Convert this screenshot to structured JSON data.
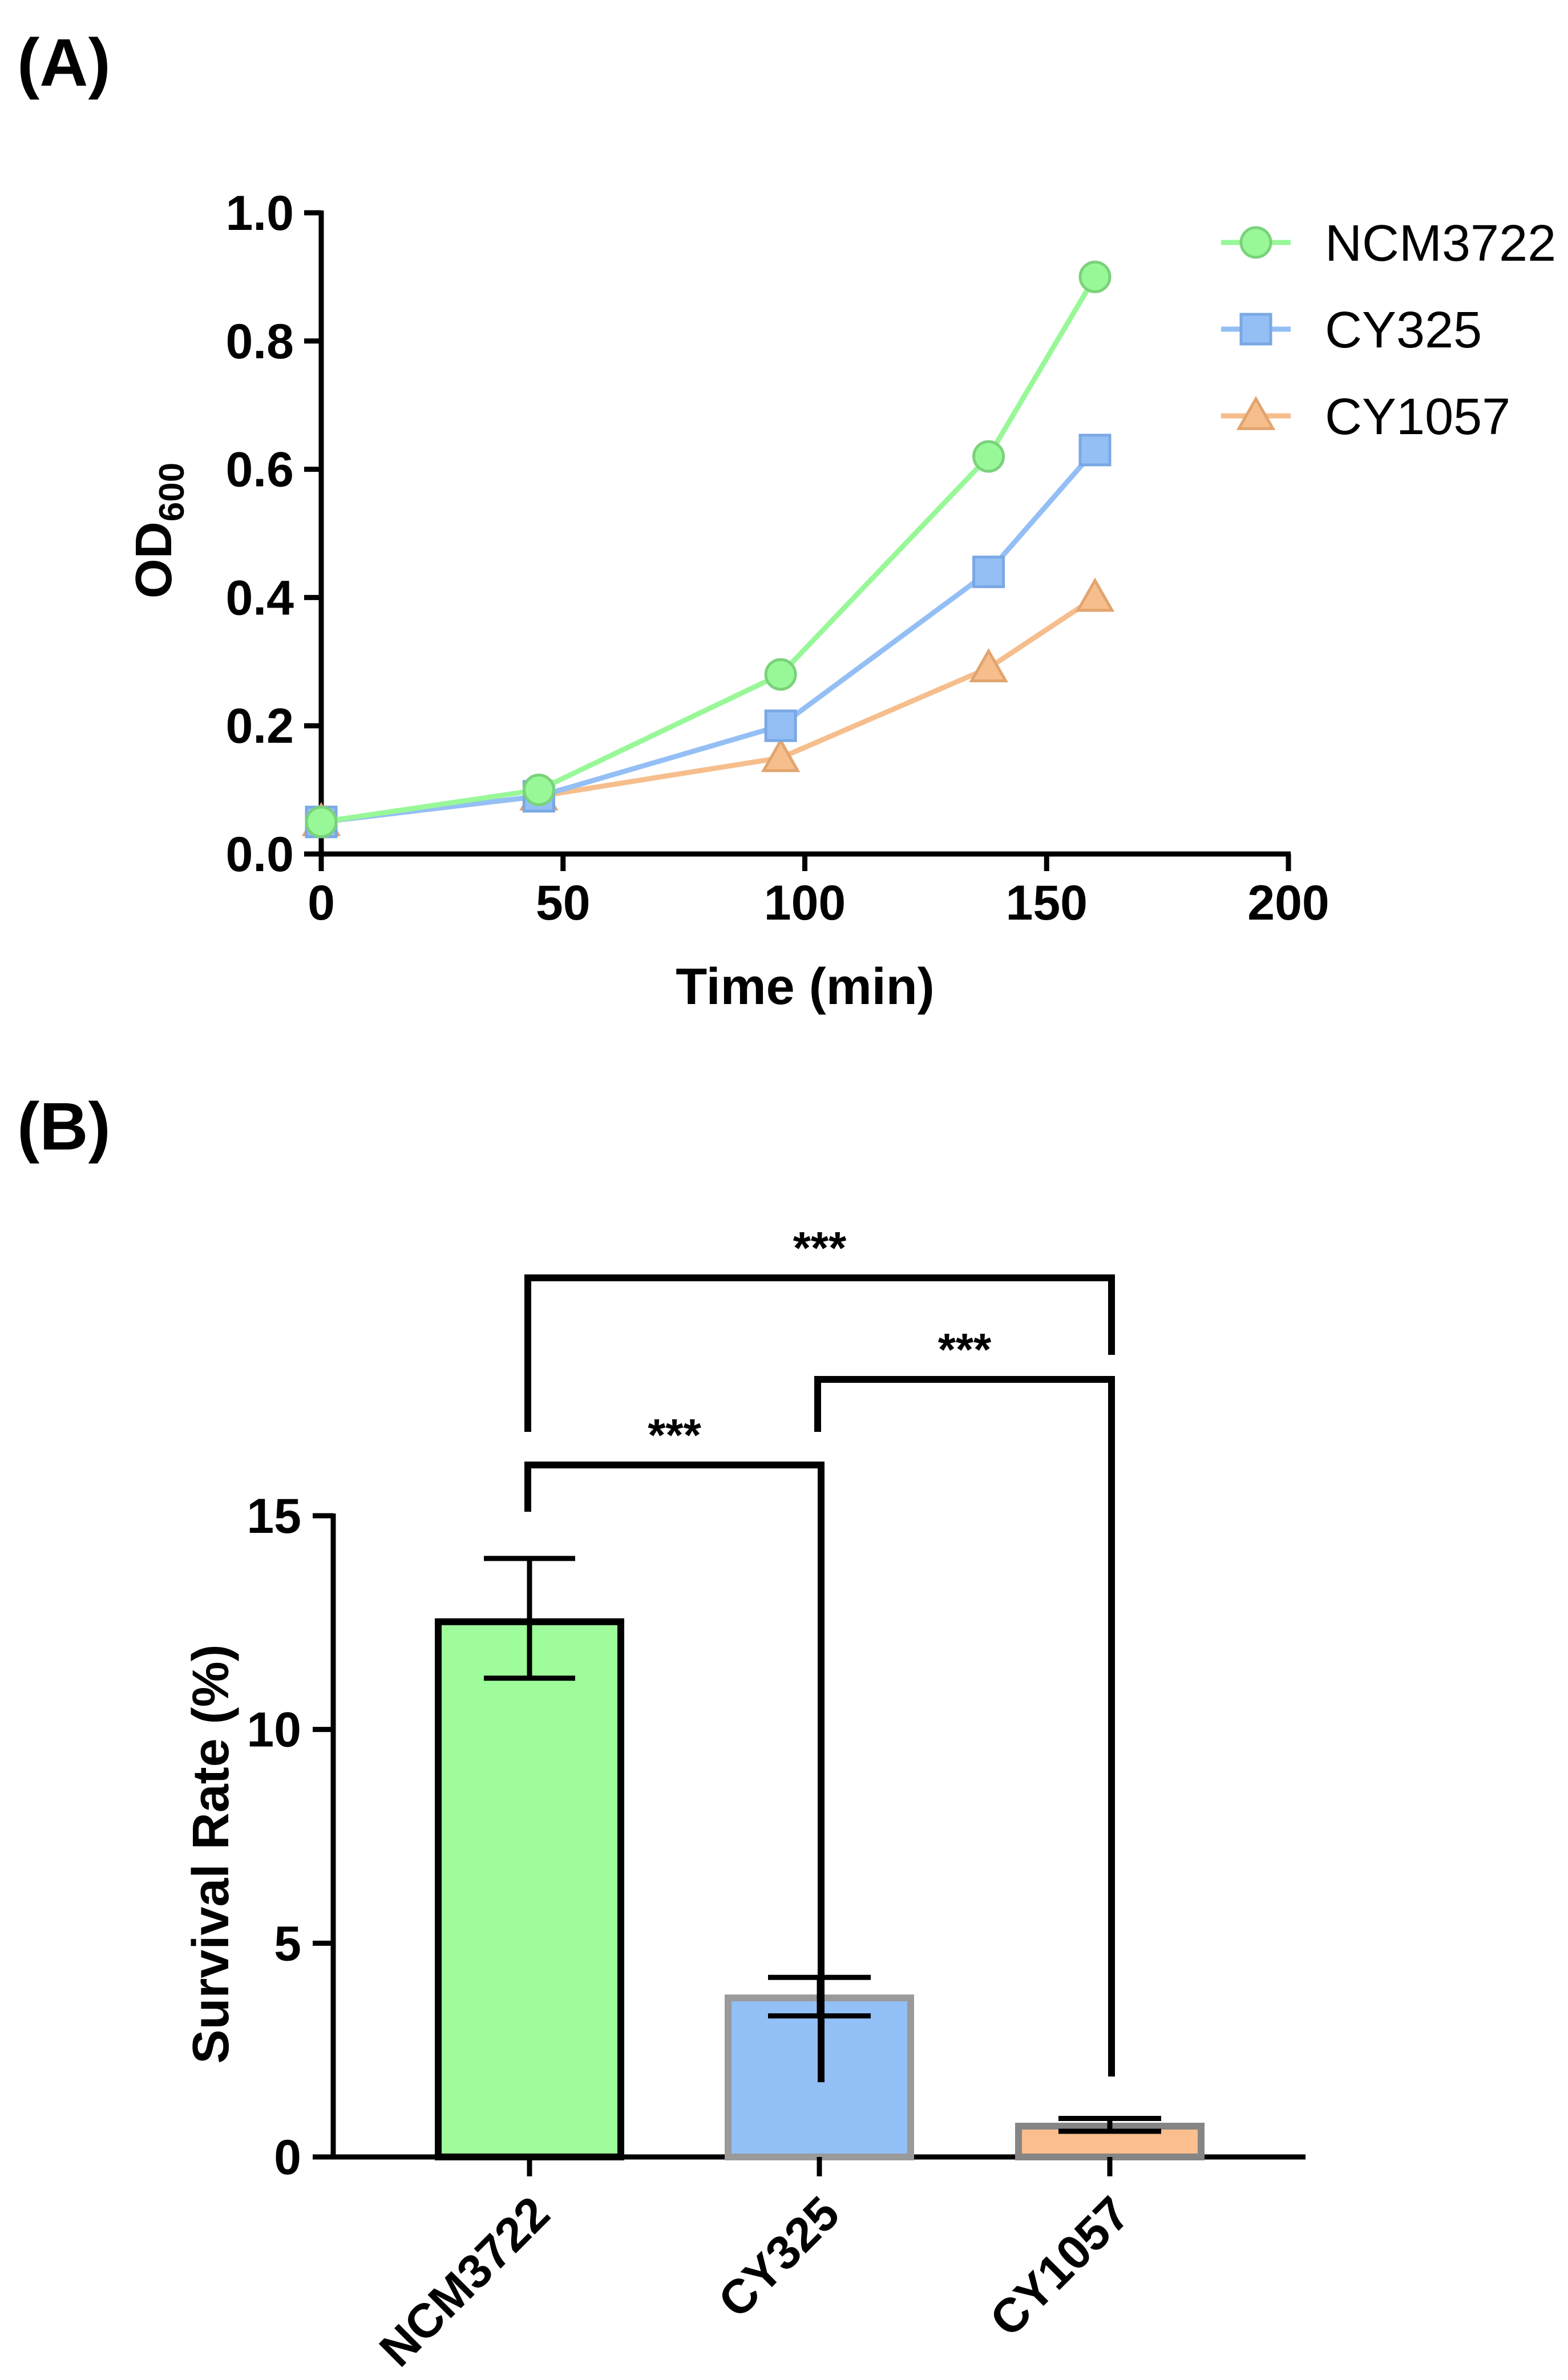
{
  "chart_data": [
    {
      "panel_label": "(A)",
      "type": "line",
      "xlabel": "Time (min)",
      "ylabel": "OD",
      "ylabel_subscript": "600",
      "xlim": [
        0,
        200
      ],
      "ylim": [
        0,
        1.0
      ],
      "xticks": [
        "0",
        "50",
        "100",
        "150",
        "200"
      ],
      "yticks": [
        "0.0",
        "0.2",
        "0.4",
        "0.6",
        "0.8",
        "1.0"
      ],
      "legend_position": "top-right",
      "x": [
        0,
        45,
        95,
        138,
        160
      ],
      "series": [
        {
          "name": "NCM3722",
          "marker": "circle",
          "color": "#98F898",
          "edge": "#7AD27A",
          "values": [
            0.05,
            0.1,
            0.28,
            0.62,
            0.9
          ]
        },
        {
          "name": "CY325",
          "marker": "square",
          "color": "#94BFF5",
          "edge": "#7AA8E4",
          "values": [
            0.05,
            0.09,
            0.2,
            0.44,
            0.63
          ]
        },
        {
          "name": "CY1057",
          "marker": "triangle",
          "color": "#F6BE8C",
          "edge": "#E2A46E",
          "values": [
            0.05,
            0.09,
            0.15,
            0.29,
            0.4
          ]
        }
      ]
    },
    {
      "panel_label": "(B)",
      "type": "bar",
      "ylabel": "Survival Rate (%)",
      "ylim": [
        0,
        15
      ],
      "yticks": [
        "0",
        "5",
        "10",
        "15"
      ],
      "categories": [
        "NCM3722",
        "CY325",
        "CY1057"
      ],
      "values": [
        12.6,
        3.8,
        0.8
      ],
      "error": [
        [
          11.2,
          14.0
        ],
        [
          3.3,
          4.2
        ],
        [
          0.6,
          0.9
        ]
      ],
      "colors": [
        "#9EFD9A",
        "#92C0F7",
        "#FABF8C"
      ],
      "edge_colors": [
        "#000000",
        "#9A9A9A",
        "#858585"
      ],
      "significance": [
        {
          "from": "NCM3722",
          "to": "CY1057",
          "label": "***"
        },
        {
          "from": "CY325",
          "to": "CY1057",
          "label": "***"
        },
        {
          "from": "NCM3722",
          "to": "CY325",
          "label": "***"
        }
      ]
    }
  ]
}
